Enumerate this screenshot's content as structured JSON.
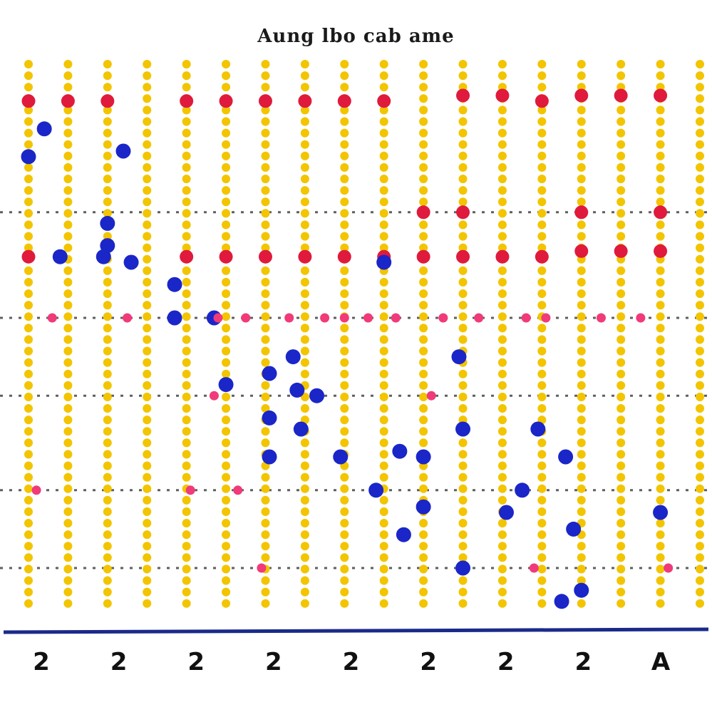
{
  "chart_data": {
    "type": "scatter",
    "title": "Aung lbo cab ame",
    "xlabel": "",
    "ylabel": "",
    "x_ticks": [
      "2",
      "2",
      "2",
      "2",
      "2",
      "2",
      "2",
      "2",
      "A"
    ],
    "xlim": [
      0,
      17
    ],
    "ylim": [
      0,
      100
    ],
    "grid": true,
    "legend": "none",
    "colors": {
      "guide": "#f2c500",
      "grid": "#2a2a2a",
      "red": "#e01a3c",
      "blue": "#1a26c8",
      "pink": "#f03a7a",
      "axis": "#1a2a8a"
    },
    "guides_x": [
      0,
      1,
      2,
      3,
      4,
      5,
      6,
      7,
      8,
      9,
      10,
      11,
      12,
      13,
      14,
      15,
      16,
      17
    ],
    "grid_y": [
      74,
      55,
      41,
      24,
      10
    ],
    "series": [
      {
        "name": "",
        "color": "#e01a3c",
        "points": [
          {
            "x": 0,
            "y": 94
          },
          {
            "x": 1,
            "y": 94
          },
          {
            "x": 2,
            "y": 94
          },
          {
            "x": 4,
            "y": 94
          },
          {
            "x": 5,
            "y": 94
          },
          {
            "x": 6,
            "y": 94
          },
          {
            "x": 7,
            "y": 94
          },
          {
            "x": 8,
            "y": 94
          },
          {
            "x": 9,
            "y": 94
          },
          {
            "x": 11,
            "y": 95
          },
          {
            "x": 12,
            "y": 95
          },
          {
            "x": 13,
            "y": 94
          },
          {
            "x": 14,
            "y": 95
          },
          {
            "x": 15,
            "y": 95
          },
          {
            "x": 16,
            "y": 95
          },
          {
            "x": 0,
            "y": 66
          },
          {
            "x": 4,
            "y": 66
          },
          {
            "x": 5,
            "y": 66
          },
          {
            "x": 6,
            "y": 66
          },
          {
            "x": 7,
            "y": 66
          },
          {
            "x": 8,
            "y": 66
          },
          {
            "x": 9,
            "y": 66
          },
          {
            "x": 10,
            "y": 66
          },
          {
            "x": 11,
            "y": 66
          },
          {
            "x": 12,
            "y": 66
          },
          {
            "x": 13,
            "y": 66
          },
          {
            "x": 14,
            "y": 67
          },
          {
            "x": 15,
            "y": 67
          },
          {
            "x": 16,
            "y": 67
          },
          {
            "x": 10,
            "y": 74
          },
          {
            "x": 11,
            "y": 74
          },
          {
            "x": 14,
            "y": 74
          },
          {
            "x": 16,
            "y": 74
          }
        ]
      },
      {
        "name": "",
        "color": "#1a26c8",
        "points": [
          {
            "x": 0.4,
            "y": 89
          },
          {
            "x": 0,
            "y": 84
          },
          {
            "x": 2.4,
            "y": 85
          },
          {
            "x": 2,
            "y": 72
          },
          {
            "x": 2,
            "y": 68
          },
          {
            "x": 0.8,
            "y": 66
          },
          {
            "x": 1.9,
            "y": 66
          },
          {
            "x": 2.6,
            "y": 65
          },
          {
            "x": 3.7,
            "y": 61
          },
          {
            "x": 3.7,
            "y": 55
          },
          {
            "x": 4.7,
            "y": 55
          },
          {
            "x": 9,
            "y": 65
          },
          {
            "x": 6.7,
            "y": 48
          },
          {
            "x": 6.1,
            "y": 45
          },
          {
            "x": 5,
            "y": 43
          },
          {
            "x": 6.8,
            "y": 42
          },
          {
            "x": 7.3,
            "y": 41
          },
          {
            "x": 10.9,
            "y": 48
          },
          {
            "x": 6.1,
            "y": 37
          },
          {
            "x": 6.9,
            "y": 35
          },
          {
            "x": 9.4,
            "y": 31
          },
          {
            "x": 10,
            "y": 30
          },
          {
            "x": 11,
            "y": 35
          },
          {
            "x": 12.9,
            "y": 35
          },
          {
            "x": 13.6,
            "y": 30
          },
          {
            "x": 6.1,
            "y": 30
          },
          {
            "x": 7.9,
            "y": 30
          },
          {
            "x": 8.8,
            "y": 24
          },
          {
            "x": 10,
            "y": 21
          },
          {
            "x": 12.5,
            "y": 24
          },
          {
            "x": 12.1,
            "y": 20
          },
          {
            "x": 9.5,
            "y": 16
          },
          {
            "x": 13.8,
            "y": 17
          },
          {
            "x": 16,
            "y": 20
          },
          {
            "x": 11,
            "y": 10
          },
          {
            "x": 13.5,
            "y": 4
          },
          {
            "x": 14,
            "y": 6
          }
        ]
      },
      {
        "name": "",
        "color": "#f03a7a",
        "points": [
          {
            "x": 0.6,
            "y": 55
          },
          {
            "x": 2.5,
            "y": 55
          },
          {
            "x": 4.8,
            "y": 55
          },
          {
            "x": 5.5,
            "y": 55
          },
          {
            "x": 6.6,
            "y": 55
          },
          {
            "x": 7.5,
            "y": 55
          },
          {
            "x": 8,
            "y": 55
          },
          {
            "x": 8.6,
            "y": 55
          },
          {
            "x": 9.3,
            "y": 55
          },
          {
            "x": 10.5,
            "y": 55
          },
          {
            "x": 11.4,
            "y": 55
          },
          {
            "x": 12.6,
            "y": 55
          },
          {
            "x": 13.1,
            "y": 55
          },
          {
            "x": 14.5,
            "y": 55
          },
          {
            "x": 15.5,
            "y": 55
          },
          {
            "x": 4.7,
            "y": 41
          },
          {
            "x": 10.2,
            "y": 41
          },
          {
            "x": 0.2,
            "y": 24
          },
          {
            "x": 4.1,
            "y": 24
          },
          {
            "x": 5.3,
            "y": 24
          },
          {
            "x": 5.9,
            "y": 10
          },
          {
            "x": 12.8,
            "y": 10
          },
          {
            "x": 16.2,
            "y": 10
          }
        ]
      }
    ]
  }
}
